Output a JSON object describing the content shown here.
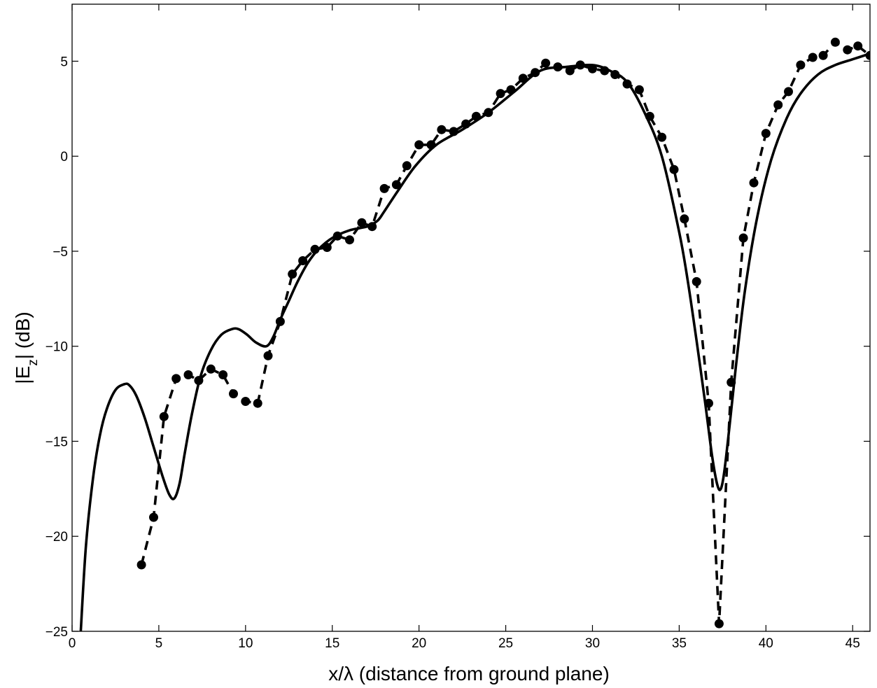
{
  "chart_data": {
    "type": "line",
    "xlabel": "x/λ (distance from ground plane)",
    "ylabel_parts": {
      "pre": "|E",
      "sub": "z",
      "post": "| (dB)"
    },
    "xlim": [
      0,
      46
    ],
    "ylim": [
      -25,
      8
    ],
    "xticks": [
      0,
      5,
      10,
      15,
      20,
      25,
      30,
      35,
      40,
      45
    ],
    "yticks": [
      -25,
      -20,
      -15,
      -10,
      -5,
      0,
      5
    ],
    "tick_labels_x": [
      "0",
      "5",
      "10",
      "15",
      "20",
      "25",
      "30",
      "35",
      "40",
      "45"
    ],
    "tick_labels_y": [
      "−25",
      "−20",
      "−15",
      "−10",
      "−5",
      "0",
      "5"
    ],
    "grid": false,
    "legend": "none",
    "series": [
      {
        "style": "solid",
        "color": "#000000",
        "x": [
          0.5,
          0.8,
          1.2,
          1.6,
          2.0,
          2.5,
          3.0,
          3.3,
          3.7,
          4.2,
          4.7,
          5.2,
          5.6,
          5.9,
          6.2,
          6.5,
          6.9,
          7.4,
          8.0,
          8.6,
          9.2,
          9.6,
          10.1,
          10.6,
          11.2,
          11.6,
          12.0,
          12.5,
          13.0,
          13.6,
          14.2,
          15.0,
          16.0,
          17.0,
          17.6,
          18.0,
          18.8,
          19.8,
          21.0,
          22.5,
          24.0,
          25.5,
          27.0,
          28.5,
          30.0,
          31.0,
          32.0,
          33.0,
          34.0,
          35.0,
          35.5,
          36.0,
          36.5,
          36.9,
          37.2,
          37.4,
          37.6,
          37.9,
          38.3,
          38.8,
          39.5,
          40.3,
          41.2,
          42.0,
          43.0,
          44.0,
          45.0,
          46.0
        ],
        "y": [
          -25,
          -20.5,
          -17.0,
          -14.7,
          -13.3,
          -12.3,
          -12.0,
          -12.05,
          -12.6,
          -13.8,
          -15.3,
          -16.8,
          -17.8,
          -18.0,
          -17.2,
          -15.6,
          -13.6,
          -11.6,
          -10.2,
          -9.4,
          -9.1,
          -9.1,
          -9.4,
          -9.8,
          -10.0,
          -9.5,
          -8.6,
          -7.6,
          -6.6,
          -5.6,
          -4.9,
          -4.3,
          -3.9,
          -3.7,
          -3.4,
          -2.9,
          -1.8,
          -0.5,
          0.6,
          1.4,
          2.3,
          3.4,
          4.5,
          4.7,
          4.8,
          4.5,
          3.9,
          2.3,
          0.0,
          -4.0,
          -6.6,
          -9.7,
          -13.0,
          -15.8,
          -17.3,
          -17.5,
          -16.6,
          -14.2,
          -10.8,
          -7.0,
          -3.2,
          -0.2,
          2.0,
          3.3,
          4.3,
          4.8,
          5.1,
          5.4
        ]
      },
      {
        "style": "dashed",
        "color": "#000000",
        "marker": "circle",
        "x": [
          4.0,
          4.7,
          5.3,
          6.0,
          6.7,
          7.3,
          8.0,
          8.7,
          9.3,
          10.0,
          10.7,
          11.3,
          12.0,
          12.7,
          13.3,
          14.0,
          14.7,
          15.3,
          16.0,
          16.7,
          17.3,
          18.0,
          18.7,
          19.3,
          20.0,
          20.7,
          21.3,
          22.0,
          22.7,
          23.3,
          24.0,
          24.7,
          25.3,
          26.0,
          26.7,
          27.3,
          28.0,
          28.7,
          29.3,
          30.0,
          30.7,
          31.3,
          32.0,
          32.7,
          33.3,
          34.0,
          34.7,
          35.3,
          36.0,
          36.7,
          37.3,
          38.0,
          38.7,
          39.3,
          40.0,
          40.7,
          41.3,
          42.0,
          42.7,
          43.3,
          44.0,
          44.7,
          45.3,
          46.0
        ],
        "y": [
          -21.5,
          -19.0,
          -13.7,
          -11.7,
          -11.5,
          -11.8,
          -11.2,
          -11.5,
          -12.5,
          -12.9,
          -13.0,
          -10.5,
          -8.7,
          -6.2,
          -5.5,
          -4.9,
          -4.8,
          -4.2,
          -4.4,
          -3.5,
          -3.7,
          -1.7,
          -1.5,
          -0.5,
          0.6,
          0.6,
          1.4,
          1.3,
          1.7,
          2.1,
          2.3,
          3.3,
          3.5,
          4.1,
          4.4,
          4.9,
          4.7,
          4.5,
          4.8,
          4.6,
          4.5,
          4.3,
          3.8,
          3.5,
          2.1,
          1.0,
          -0.7,
          -3.3,
          -6.6,
          -13.0,
          -24.6,
          -11.9,
          -4.3,
          -1.4,
          1.2,
          2.7,
          3.4,
          4.8,
          5.2,
          5.3,
          6.0,
          5.6,
          5.8,
          5.3
        ]
      }
    ]
  }
}
